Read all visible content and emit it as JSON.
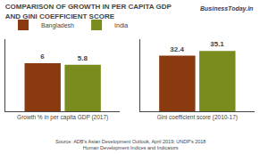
{
  "chart_data": [
    {
      "type": "bar",
      "title": "COMPARISON OF GROWTH IN PER CAPITA GDP\nAND GINI COEFFICIENT SCORE",
      "categories": [
        "Growth % in per capita GDP (2017)"
      ],
      "series": [
        {
          "name": "Bangladesh",
          "color": "#8B3A10",
          "values": [
            6
          ]
        },
        {
          "name": "India",
          "color": "#7A8C1E",
          "values": [
            5.8
          ]
        }
      ],
      "ylim": [
        0,
        9
      ],
      "data_labels": true,
      "tick_labels": "x",
      "grid": false,
      "legend": "upper left",
      "annotations": [
        "BusinessToday.In",
        "Source: ADB's Asian Development Outlook, April 2019; UNDP's 2018\nHuman Development Indices and Indicators"
      ]
    },
    {
      "type": "bar",
      "categories": [
        "Gini coefficient score (2010-17)"
      ],
      "series": [
        {
          "name": "Bangladesh",
          "color": "#8B3A10",
          "values": [
            32.4
          ]
        },
        {
          "name": "India",
          "color": "#7A8C1E",
          "values": [
            35.1
          ]
        }
      ],
      "ylim": [
        0,
        42
      ],
      "data_labels": true,
      "tick_labels": "x",
      "grid": false
    }
  ]
}
